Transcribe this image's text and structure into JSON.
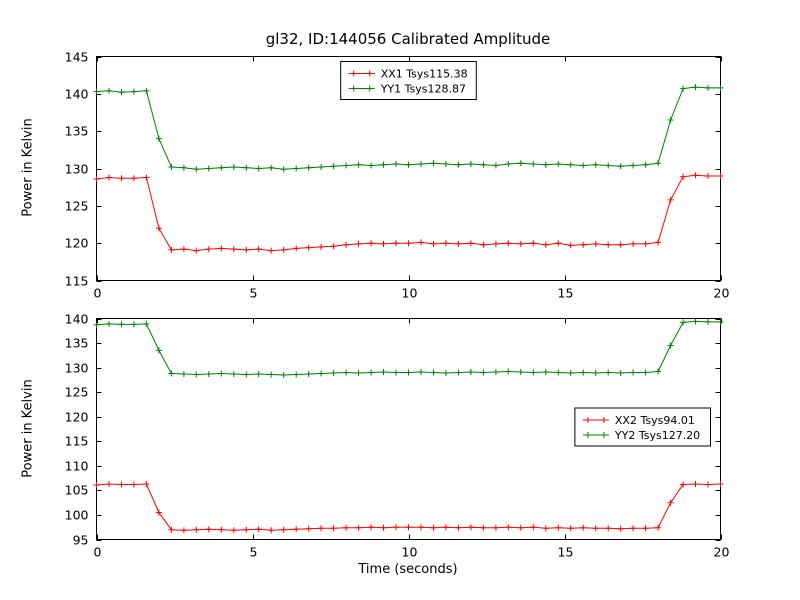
{
  "figure_title": "gl32, ID:144056 Calibrated Amplitude",
  "colors": {
    "series_red": "#ff0000",
    "series_green": "#008000",
    "axis": "#000000",
    "background": "#ffffff"
  },
  "chart_data": [
    {
      "type": "line",
      "title": "gl32, ID:144056 Calibrated Amplitude",
      "xlabel": "",
      "ylabel": "Power in Kelvin",
      "xlim": [
        0,
        20
      ],
      "ylim": [
        115,
        145
      ],
      "xticks": [
        0,
        5,
        10,
        15,
        20
      ],
      "yticks": [
        115,
        120,
        125,
        130,
        135,
        140,
        145
      ],
      "grid": false,
      "legend": "top-center",
      "marker": "+",
      "x": [
        0,
        0.4,
        0.8,
        1.2,
        1.6,
        2,
        2.4,
        2.8,
        3.2,
        3.6,
        4,
        4.4,
        4.8,
        5.2,
        5.6,
        6,
        6.4,
        6.8,
        7.2,
        7.6,
        8,
        8.4,
        8.8,
        9.2,
        9.6,
        10,
        10.4,
        10.8,
        11.2,
        11.6,
        12,
        12.4,
        12.8,
        13.2,
        13.6,
        14,
        14.4,
        14.8,
        15.2,
        15.6,
        16,
        16.4,
        16.8,
        17.2,
        17.6,
        18,
        18.4,
        18.8,
        19.2,
        19.6,
        20
      ],
      "series": [
        {
          "name": "XX1 Tsys115.38",
          "color": "#ff0000",
          "values": [
            128.6,
            128.8,
            128.7,
            128.7,
            128.8,
            122,
            119.1,
            119.2,
            119,
            119.2,
            119.3,
            119.2,
            119.1,
            119.2,
            119,
            119.1,
            119.3,
            119.4,
            119.5,
            119.6,
            119.8,
            119.9,
            120,
            119.9,
            120,
            120,
            120.1,
            119.9,
            120,
            119.9,
            120,
            119.8,
            119.9,
            120,
            119.9,
            120,
            119.8,
            120,
            119.7,
            119.8,
            119.9,
            119.8,
            119.8,
            119.9,
            119.9,
            120.1,
            125.8,
            128.9,
            129.1,
            129,
            129
          ]
        },
        {
          "name": "YY1 Tsys128.87",
          "color": "#008000",
          "values": [
            140.3,
            140.4,
            140.2,
            140.3,
            140.4,
            134,
            130.2,
            130.1,
            129.9,
            130,
            130.1,
            130.2,
            130.1,
            130,
            130.1,
            129.9,
            130,
            130.1,
            130.2,
            130.3,
            130.4,
            130.5,
            130.4,
            130.5,
            130.6,
            130.5,
            130.6,
            130.7,
            130.6,
            130.5,
            130.6,
            130.5,
            130.4,
            130.6,
            130.7,
            130.6,
            130.5,
            130.6,
            130.5,
            130.4,
            130.5,
            130.4,
            130.3,
            130.4,
            130.5,
            130.7,
            136.5,
            140.7,
            140.9,
            140.8,
            140.8
          ]
        }
      ]
    },
    {
      "type": "line",
      "title": "",
      "xlabel": "Time (seconds)",
      "ylabel": "Power in Kelvin",
      "xlim": [
        0,
        20
      ],
      "ylim": [
        95,
        140
      ],
      "xticks": [
        0,
        5,
        10,
        15,
        20
      ],
      "yticks": [
        95,
        100,
        105,
        110,
        115,
        120,
        125,
        130,
        135,
        140
      ],
      "grid": false,
      "legend": "right-center",
      "marker": "+",
      "x": [
        0,
        0.4,
        0.8,
        1.2,
        1.6,
        2,
        2.4,
        2.8,
        3.2,
        3.6,
        4,
        4.4,
        4.8,
        5.2,
        5.6,
        6,
        6.4,
        6.8,
        7.2,
        7.6,
        8,
        8.4,
        8.8,
        9.2,
        9.6,
        10,
        10.4,
        10.8,
        11.2,
        11.6,
        12,
        12.4,
        12.8,
        13.2,
        13.6,
        14,
        14.4,
        14.8,
        15.2,
        15.6,
        16,
        16.4,
        16.8,
        17.2,
        17.6,
        18,
        18.4,
        18.8,
        19.2,
        19.6,
        20
      ],
      "series": [
        {
          "name": "XX2 Tsys94.01",
          "color": "#ff0000",
          "values": [
            106.1,
            106.3,
            106.2,
            106.2,
            106.3,
            100.5,
            97,
            96.9,
            97,
            97.1,
            97,
            96.9,
            97,
            97.1,
            96.9,
            97,
            97.1,
            97.2,
            97.3,
            97.3,
            97.4,
            97.4,
            97.5,
            97.4,
            97.5,
            97.5,
            97.5,
            97.4,
            97.5,
            97.4,
            97.5,
            97.4,
            97.4,
            97.5,
            97.4,
            97.5,
            97.3,
            97.4,
            97.3,
            97.4,
            97.3,
            97.3,
            97.2,
            97.3,
            97.3,
            97.4,
            102.5,
            106.2,
            106.3,
            106.2,
            106.3
          ]
        },
        {
          "name": "YY2 Tsys127.20",
          "color": "#008000",
          "values": [
            138.7,
            138.9,
            138.8,
            138.8,
            138.9,
            133.5,
            128.8,
            128.7,
            128.6,
            128.7,
            128.8,
            128.7,
            128.6,
            128.7,
            128.6,
            128.5,
            128.6,
            128.7,
            128.8,
            128.9,
            129,
            128.9,
            129,
            129.1,
            129,
            129,
            129.1,
            129,
            128.9,
            129,
            129.1,
            129,
            129.1,
            129.2,
            129.1,
            129,
            129.1,
            129,
            128.9,
            129,
            128.9,
            129,
            128.9,
            129,
            129,
            129.2,
            134.5,
            139.2,
            139.4,
            139.3,
            139.3
          ]
        }
      ]
    }
  ]
}
